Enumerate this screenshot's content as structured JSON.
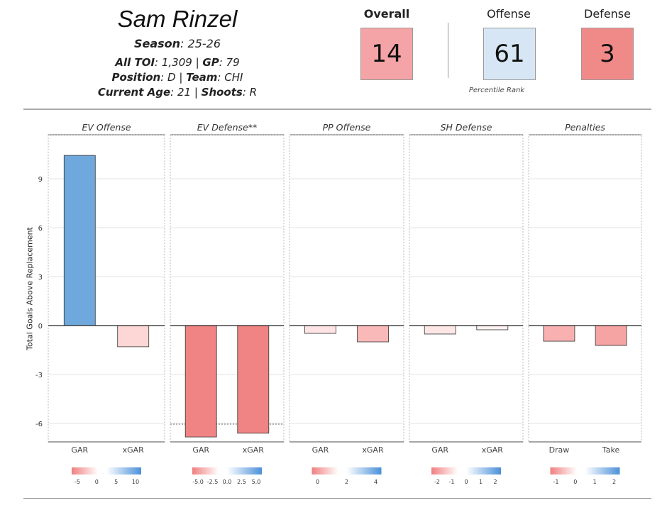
{
  "player": {
    "name": "Sam Rinzel",
    "season_label": "Season",
    "season": "25-26",
    "toi_label": "All TOI",
    "toi": "1,309",
    "gp_label": "GP",
    "gp": "79",
    "position_label": "Position",
    "position": "D",
    "team_label": "Team",
    "team": "CHI",
    "age_label": "Current Age",
    "age": "21",
    "shoots_label": "Shoots",
    "shoots": "R"
  },
  "ranks": {
    "overall_label": "Overall",
    "overall": "14",
    "overall_color": "#f4a3a6",
    "offense_label": "Offense",
    "offense": "61",
    "offense_color": "#d7e6f4",
    "defense_label": "Defense",
    "defense": "3",
    "defense_color": "#f08a88",
    "caption": "Percentile Rank"
  },
  "chart_data": {
    "type": "bar",
    "ylabel": "Total Goals Above Replacement",
    "ylim": [
      -7.2,
      11.6
    ],
    "yticks": [
      9,
      6,
      3,
      0,
      -3,
      -6
    ],
    "grid": true,
    "panels": [
      {
        "title": "EV Offense",
        "categories": [
          "GAR",
          "xGAR"
        ],
        "values": [
          10.43,
          -1.3
        ],
        "colors": [
          "#6fa8dc",
          "#fdd6d6"
        ],
        "legend_ticks": [
          "-5",
          "0",
          "5",
          "10"
        ]
      },
      {
        "title": "EV Defense**",
        "categories": [
          "GAR",
          "xGAR"
        ],
        "values": [
          -6.83,
          -6.6
        ],
        "colors": [
          "#f08484",
          "#f08484"
        ],
        "reference_line": -6.04,
        "legend_ticks": [
          "-5.0",
          "-2.5",
          "0.0",
          "2.5",
          "5.0"
        ]
      },
      {
        "title": "PP Offense",
        "categories": [
          "GAR",
          "xGAR"
        ],
        "values": [
          -0.48,
          -1.0
        ],
        "colors": [
          "#fde3e3",
          "#f9b9b9"
        ],
        "legend_ticks": [
          "0",
          "2",
          "4"
        ]
      },
      {
        "title": "SH Defense",
        "categories": [
          "GAR",
          "xGAR"
        ],
        "values": [
          -0.52,
          -0.26
        ],
        "colors": [
          "#fde6e6",
          "#fef0f0"
        ],
        "legend_ticks": [
          "-2",
          "-1",
          "0",
          "1",
          "2"
        ]
      },
      {
        "title": "Penalties",
        "categories": [
          "Draw",
          "Take"
        ],
        "values": [
          -0.96,
          -1.22
        ],
        "colors": [
          "#f8b0b0",
          "#f5a3a3"
        ],
        "legend_ticks": [
          "-1",
          "0",
          "1",
          "2"
        ]
      }
    ]
  }
}
